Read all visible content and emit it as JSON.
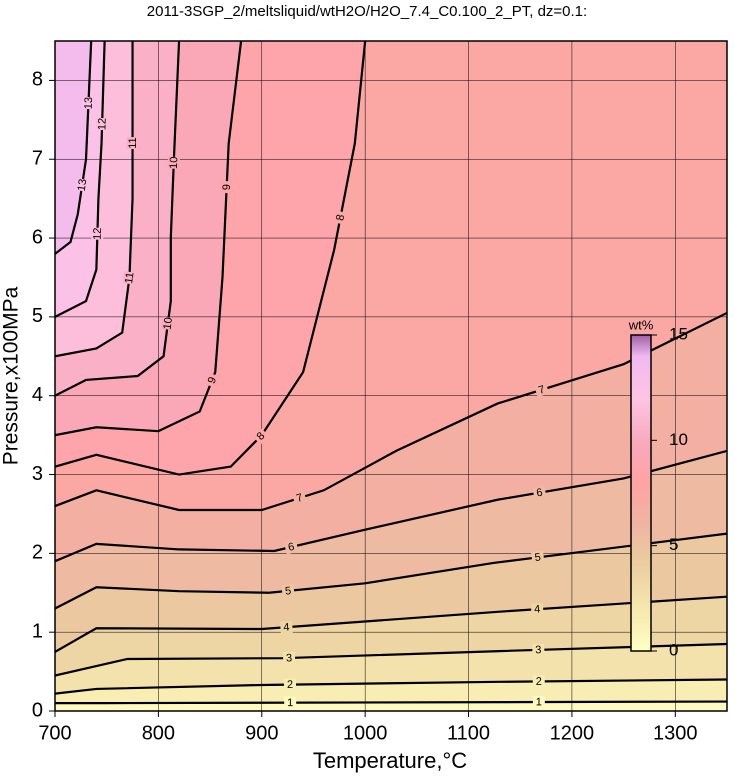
{
  "chart_data": {
    "type": "contour",
    "title": "2011-3SGP_2/meltsliquid/wtH2O/H2O_7.4_C0.100_2_PT, dz=0.1:",
    "x_label": "Temperature,°C",
    "y_label": "Pressure,x100MPa",
    "xlim": [
      700,
      1350
    ],
    "xticks": [
      700,
      800,
      900,
      1000,
      1100,
      1200,
      1300
    ],
    "ylim": [
      0,
      8.5
    ],
    "yticks": [
      0,
      1,
      2,
      3,
      4,
      5,
      6,
      7,
      8
    ],
    "grid": true,
    "contours": [
      {
        "level": 1,
        "x": [
          700,
          750,
          1350
        ],
        "y": [
          0.1,
          0.1,
          0.12
        ]
      },
      {
        "level": 2,
        "x": [
          700,
          740,
          900,
          1130,
          1350
        ],
        "y": [
          0.22,
          0.28,
          0.33,
          0.37,
          0.4
        ]
      },
      {
        "level": 3,
        "x": [
          700,
          770,
          920,
          1130,
          1350
        ],
        "y": [
          0.45,
          0.66,
          0.67,
          0.76,
          0.85
        ]
      },
      {
        "level": 4,
        "x": [
          700,
          740,
          900,
          1130,
          1350
        ],
        "y": [
          0.75,
          1.05,
          1.04,
          1.26,
          1.45
        ]
      },
      {
        "level": 5,
        "x": [
          700,
          740,
          820,
          907,
          1000,
          1125,
          1350
        ],
        "y": [
          1.3,
          1.57,
          1.52,
          1.5,
          1.62,
          1.88,
          2.25
        ]
      },
      {
        "level": 6,
        "x": [
          700,
          740,
          820,
          912,
          1000,
          1128,
          1250,
          1350
        ],
        "y": [
          1.9,
          2.12,
          2.05,
          2.03,
          2.3,
          2.68,
          2.95,
          3.3
        ]
      },
      {
        "level": 7,
        "x": [
          700,
          740,
          820,
          900,
          960,
          1030,
          1128,
          1250,
          1350
        ],
        "y": [
          2.6,
          2.8,
          2.55,
          2.55,
          2.8,
          3.3,
          3.9,
          4.4,
          5.05
        ]
      },
      {
        "level": 8,
        "x": [
          700,
          740,
          820,
          870,
          900,
          940,
          970,
          990,
          1000
        ],
        "y": [
          3.1,
          3.25,
          3.0,
          3.1,
          3.5,
          4.3,
          5.85,
          7.2,
          8.5
        ]
      },
      {
        "level": 9,
        "x": [
          700,
          740,
          800,
          840,
          855,
          862,
          868,
          880
        ],
        "y": [
          3.5,
          3.6,
          3.55,
          3.8,
          4.3,
          5.5,
          7.2,
          8.5
        ]
      },
      {
        "level": 10,
        "x": [
          700,
          730,
          780,
          805,
          812,
          812,
          815,
          820
        ],
        "y": [
          4.0,
          4.2,
          4.25,
          4.5,
          5.2,
          6.0,
          7.0,
          8.5
        ]
      },
      {
        "level": 11,
        "x": [
          700,
          740,
          765,
          772,
          775,
          775
        ],
        "y": [
          4.5,
          4.6,
          4.8,
          5.5,
          6.5,
          8.5
        ]
      },
      {
        "level": 12,
        "x": [
          700,
          730,
          740,
          742,
          745,
          748
        ],
        "y": [
          5.0,
          5.2,
          5.6,
          6.5,
          7.2,
          8.5
        ]
      },
      {
        "level": 13,
        "x": [
          700,
          715,
          722,
          730,
          735
        ],
        "y": [
          5.8,
          5.95,
          6.3,
          7.0,
          8.5
        ]
      }
    ],
    "colorbar": {
      "label": "wt%",
      "lim": [
        0,
        15
      ],
      "ticks": [
        0,
        5,
        10,
        15
      ],
      "stops": [
        {
          "value": 0,
          "color": "#ffffc4"
        },
        {
          "value": 2,
          "color": "#f6e8ae"
        },
        {
          "value": 4,
          "color": "#ebcfa0"
        },
        {
          "value": 6,
          "color": "#efb4a2"
        },
        {
          "value": 8,
          "color": "#ffa3a3"
        },
        {
          "value": 10,
          "color": "#f8aabf"
        },
        {
          "value": 12,
          "color": "#ffc4e4"
        },
        {
          "value": 14,
          "color": "#f0b8f0"
        },
        {
          "value": 15,
          "color": "#a060a8"
        }
      ]
    }
  }
}
